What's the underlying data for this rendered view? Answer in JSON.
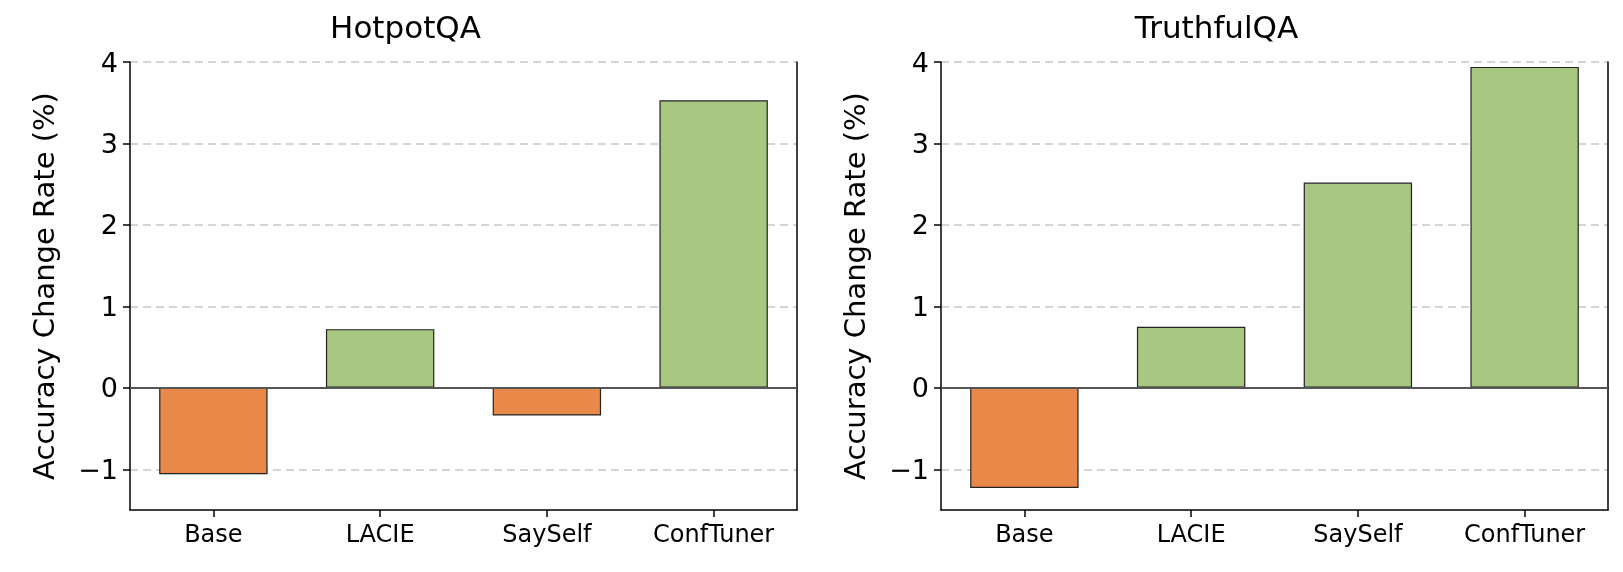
{
  "chart_data": [
    {
      "type": "bar",
      "title": "HotpotQA",
      "ylabel": "Accuracy Change Rate (%)",
      "categories": [
        "Base",
        "LACIE",
        "SaySelf",
        "ConfTuner"
      ],
      "values": [
        -1.06,
        0.72,
        -0.34,
        3.53
      ],
      "colors": [
        "#e8894a",
        "#a8c882",
        "#e8894a",
        "#a8c882"
      ],
      "ylim": [
        -1.5,
        4
      ],
      "yticks": [
        -1,
        0,
        1,
        2,
        3,
        4
      ],
      "grid": "y",
      "ref_lines": [
        {
          "axis": "y",
          "value": 0,
          "color": "#555555",
          "line_style": "solid"
        }
      ]
    },
    {
      "type": "bar",
      "title": "TruthfulQA",
      "ylabel": "Accuracy Change Rate (%)",
      "categories": [
        "Base",
        "LACIE",
        "SaySelf",
        "ConfTuner"
      ],
      "values": [
        -1.23,
        0.75,
        2.52,
        3.94
      ],
      "colors": [
        "#e8894a",
        "#a8c882",
        "#a8c882",
        "#a8c882"
      ],
      "ylim": [
        -1.5,
        4
      ],
      "yticks": [
        -1,
        0,
        1,
        2,
        3,
        4
      ],
      "grid": "y",
      "ref_lines": [
        {
          "axis": "y",
          "value": 0,
          "color": "#555555",
          "line_style": "solid"
        }
      ]
    }
  ]
}
